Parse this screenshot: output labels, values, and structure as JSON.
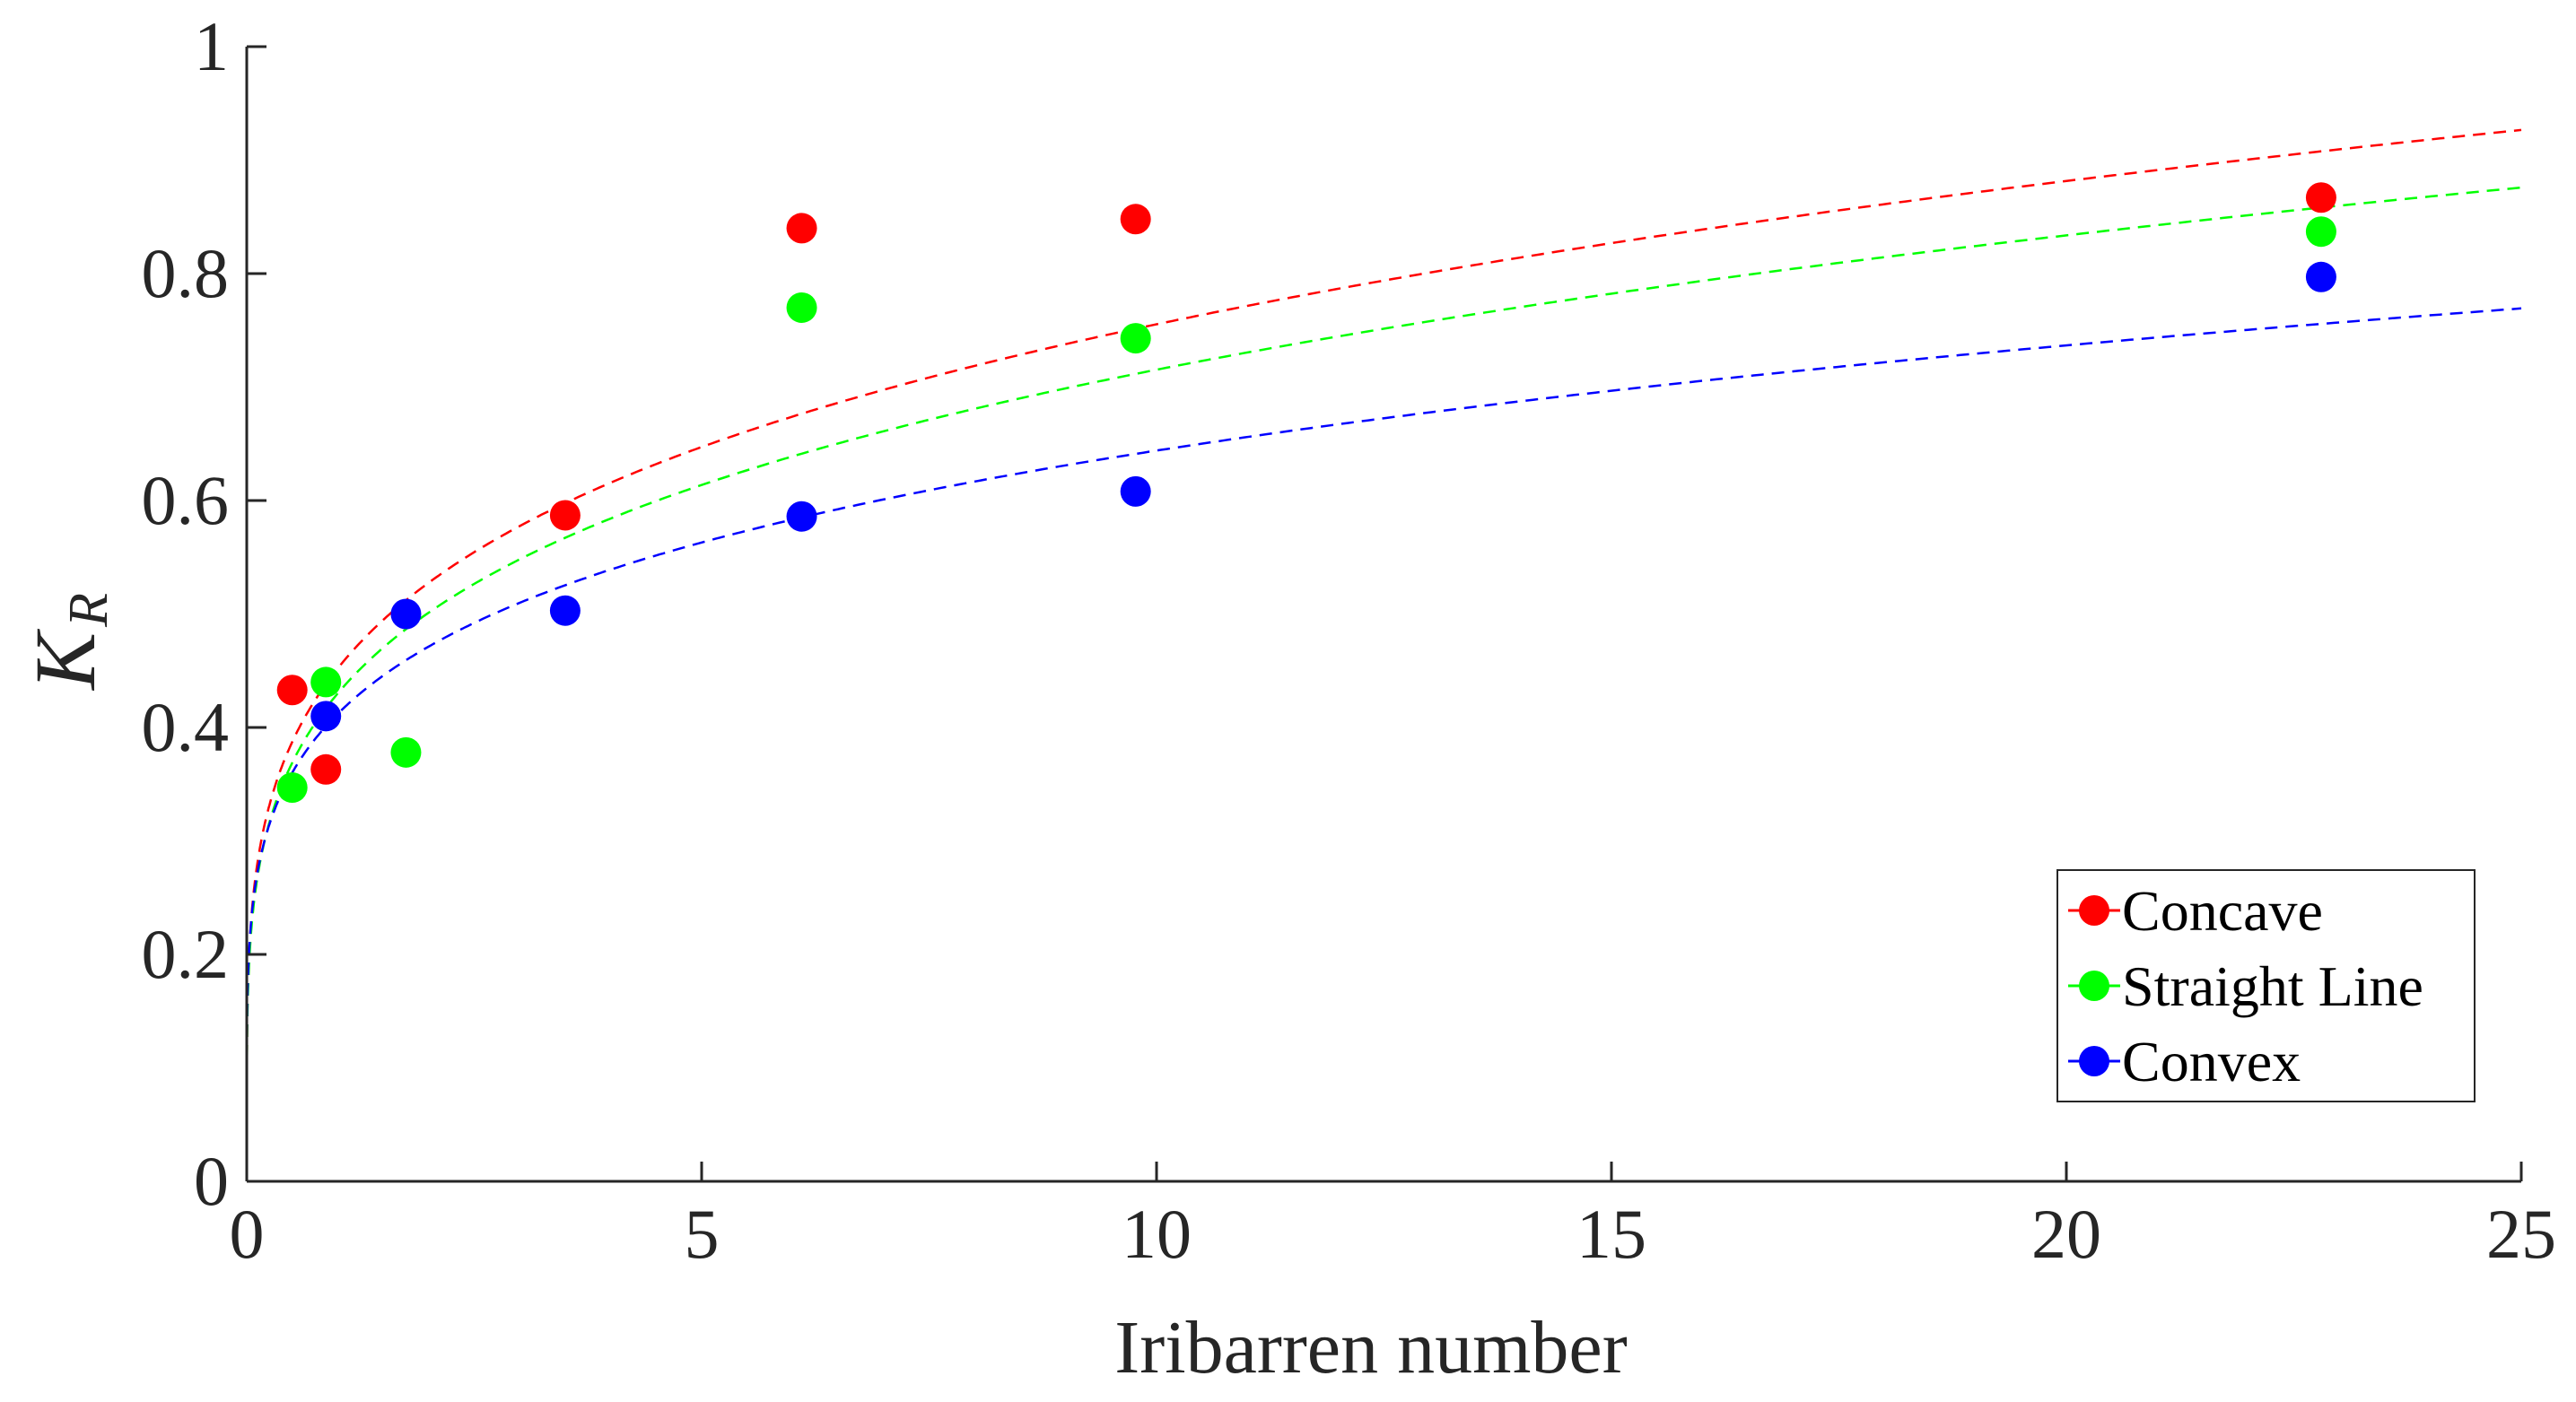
{
  "chart_data": {
    "type": "scatter",
    "title": "",
    "xlabel": "Iribarren number",
    "ylabel": "K",
    "ylabel_subscript": "R",
    "xlim": [
      0,
      25
    ],
    "ylim": [
      0,
      1
    ],
    "xticks": [
      0,
      5,
      10,
      15,
      20,
      25
    ],
    "xtick_labels": [
      "0",
      "5",
      "10",
      "15",
      "20",
      "25"
    ],
    "yticks": [
      0,
      0.2,
      0.4,
      0.6,
      0.8,
      1
    ],
    "ytick_labels": [
      "0",
      "0.2",
      "0.4",
      "0.6",
      "0.8",
      "1"
    ],
    "grid": false,
    "legend_position": "bottom-right",
    "series": [
      {
        "name": "Concave",
        "color": "#ff0000",
        "x": [
          0.5,
          0.87,
          3.5,
          6.1,
          9.77,
          22.8
        ],
        "y": [
          0.433,
          0.363,
          0.587,
          0.84,
          0.848,
          0.867
        ],
        "fit": {
          "style": "dashed",
          "a": 0.452,
          "b": 0.223
        }
      },
      {
        "name": "Straight Line",
        "color": "#00ff00",
        "x": [
          0.5,
          0.87,
          1.75,
          6.1,
          9.77,
          22.8
        ],
        "y": [
          0.347,
          0.44,
          0.378,
          0.77,
          0.743,
          0.837
        ],
        "fit": {
          "style": "dashed",
          "a": 0.43,
          "b": 0.221
        }
      },
      {
        "name": "Convex",
        "color": "#0000ff",
        "x": [
          0.87,
          1.75,
          3.5,
          6.1,
          9.77,
          22.8
        ],
        "y": [
          0.41,
          0.5,
          0.503,
          0.586,
          0.608,
          0.797
        ],
        "fit": {
          "style": "dashed",
          "a": 0.412,
          "b": 0.194
        }
      }
    ]
  }
}
